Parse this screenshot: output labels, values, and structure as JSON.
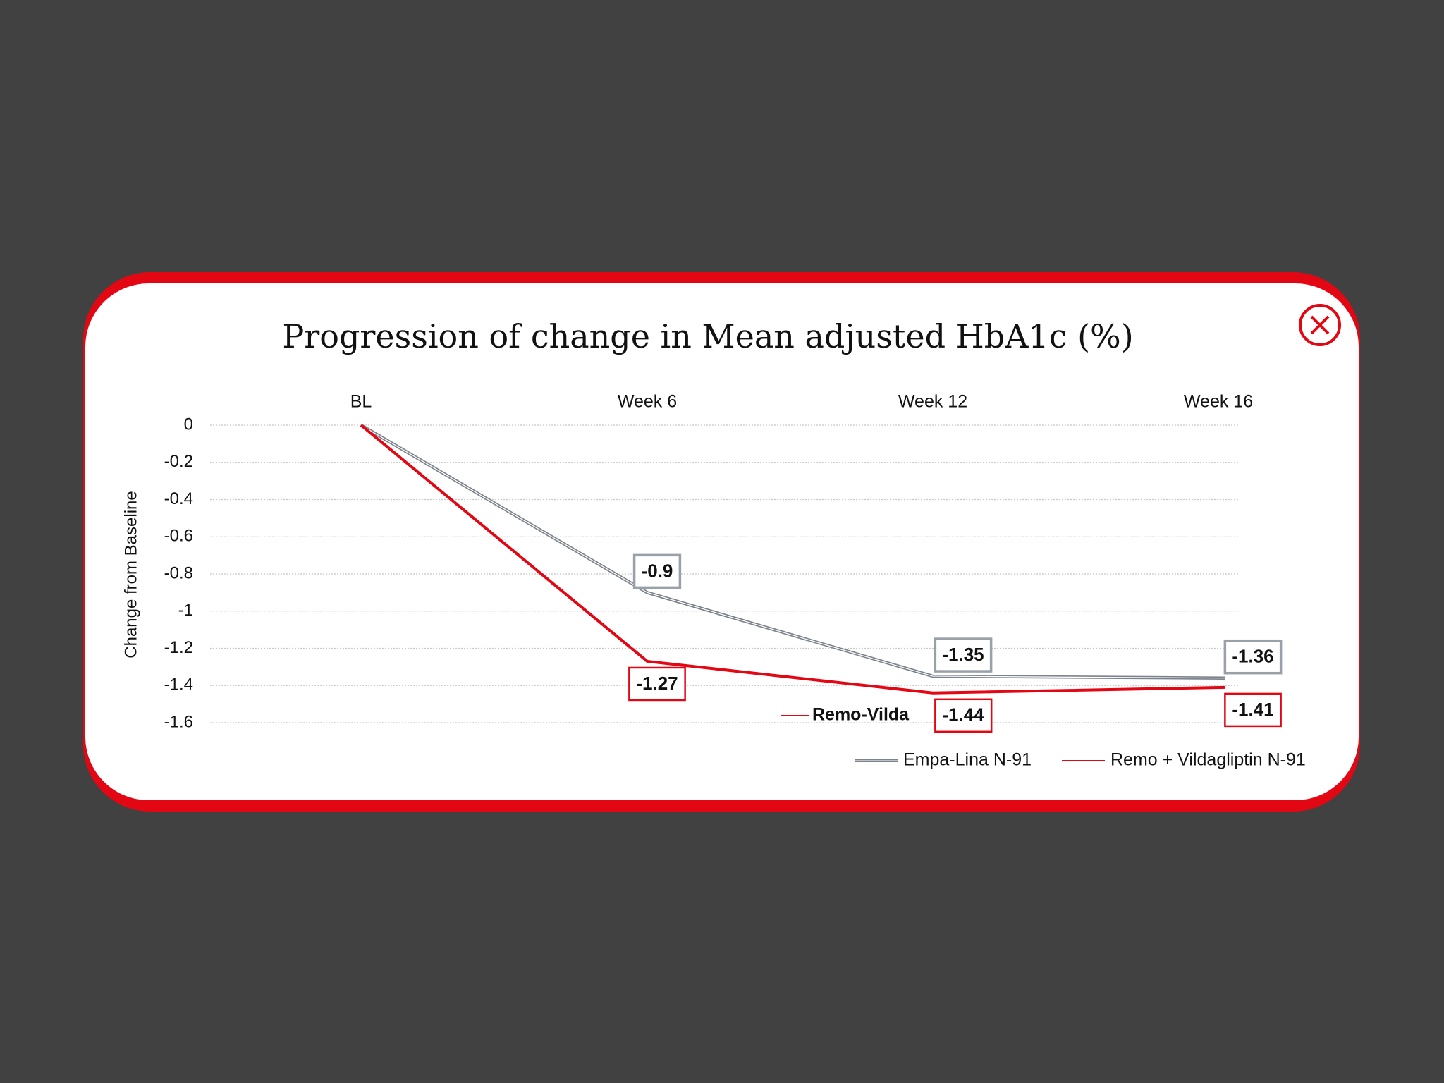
{
  "chart_data": {
    "type": "line",
    "title": "Progression of change in Mean adjusted HbA1c (%)",
    "ylabel": "Change from Baseline",
    "categories": [
      "BL",
      "Week 6",
      "Week 12",
      "Week 16"
    ],
    "series": [
      {
        "name": "Empa-Lina N-91",
        "color": "#7d838c",
        "values": [
          0,
          -0.9,
          -1.35,
          -1.36
        ]
      },
      {
        "name": "Remo + Vildagliptin N-91",
        "color": "#e30613",
        "values": [
          0,
          -1.27,
          -1.44,
          -1.41
        ]
      }
    ],
    "ylim": [
      -1.6,
      0
    ],
    "yticks": [
      0,
      -0.2,
      -0.4,
      -0.6,
      -0.8,
      -1,
      -1.2,
      -1.4,
      -1.6
    ],
    "grid": true,
    "annotation": "Remo-Vilda",
    "legend": "bottom-right"
  }
}
